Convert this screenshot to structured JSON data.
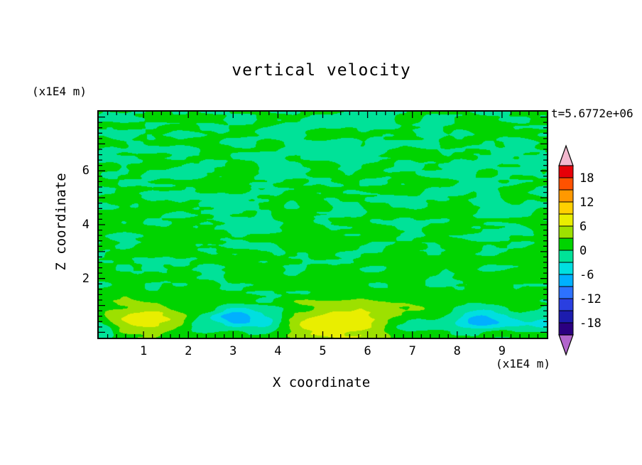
{
  "page": {
    "background": "#ffffff",
    "text_color": "#000000"
  },
  "title": "vertical velocity",
  "timestamp": "t=5.6772e+06",
  "axes": {
    "x_label": "X coordinate",
    "z_label": "Z coordinate",
    "x_unit": "(x1E4 m)",
    "z_unit": "(x1E4 m)",
    "x_ticks": [
      1,
      2,
      3,
      4,
      5,
      6,
      7,
      8,
      9
    ],
    "z_ticks": [
      2,
      4,
      6
    ],
    "x_range": [
      0,
      10
    ],
    "z_range": [
      -0.2,
      8.2
    ],
    "minor_tick_step": 0.2
  },
  "colorbar": {
    "labels": [
      18,
      12,
      6,
      0,
      -6,
      -12,
      -18
    ],
    "range": [
      -21,
      21
    ],
    "band_size": 3,
    "segment_colors_top_to_bottom": [
      "#e60008",
      "#ff5200",
      "#ff9900",
      "#ffd000",
      "#e9ee00",
      "#9de000",
      "#00d400",
      "#00e298",
      "#00dfe0",
      "#00b0ff",
      "#2d72ff",
      "#2a3fe0",
      "#1c1cae",
      "#2b0080"
    ],
    "arrow_top_color": "#f2b8ce",
    "arrow_bottom_color": "#b266cc"
  },
  "chart_data": {
    "type": "contour",
    "title": "vertical velocity",
    "xlabel": "X coordinate",
    "ylabel": "Z coordinate",
    "x_unit": "x1E4 m",
    "y_unit": "x1E4 m",
    "time_label": "t=5.6772e+06",
    "x_range": [
      0,
      10
    ],
    "z_range": [
      0,
      8.2
    ],
    "contour_interval": 3,
    "labeled_levels": [
      -18,
      -12,
      -6,
      0,
      6,
      12,
      18
    ],
    "field_summary": "vertical velocity mostly between -3 and +3 (interleaved green and spring-green patches, horizontally streaky); stronger positive cells (+6 to +9, yellow-green/yellow) near the surface around x=1 and x=4.5-6.5; negative cells (-4 to -9, cyan with small sky-blue cores) near the surface around x=2.4, x=3.0, x=3.8, x=6.9, x=8.5 and the left/right bottom corners",
    "texture": {
      "seed": 7.31,
      "amp": 2.15,
      "bias": 0.2,
      "tilt": -0.15,
      "sx1": 1.6,
      "sz1": 3.4,
      "sx2": 3.2,
      "sz2": 7.0,
      "w2": 0.55,
      "clamp": 8.5
    },
    "estimated_features": [
      {
        "x": 0.9,
        "z": 0.45,
        "sx": 1.0,
        "sz": 0.55,
        "amp": 7
      },
      {
        "x": 5.5,
        "z": 0.3,
        "sx": 1.35,
        "sz": 0.75,
        "amp": 8
      },
      {
        "x": 3.05,
        "z": 0.55,
        "sx": 0.45,
        "sz": 0.38,
        "amp": -8.5
      },
      {
        "x": 3.8,
        "z": 0.45,
        "sx": 0.55,
        "sz": 0.4,
        "amp": -5
      },
      {
        "x": 2.35,
        "z": 0.25,
        "sx": 0.4,
        "sz": 0.3,
        "amp": -4
      },
      {
        "x": 6.9,
        "z": 0.2,
        "sx": 0.9,
        "sz": 0.35,
        "amp": -4
      },
      {
        "x": 8.55,
        "z": 0.5,
        "sx": 0.6,
        "sz": 0.4,
        "amp": -8.5
      },
      {
        "x": 9.8,
        "z": 0.3,
        "sx": 0.5,
        "sz": 0.3,
        "amp": -3.5
      },
      {
        "x": 0.05,
        "z": 0.15,
        "sx": 0.35,
        "sz": 0.45,
        "amp": -5
      }
    ]
  }
}
